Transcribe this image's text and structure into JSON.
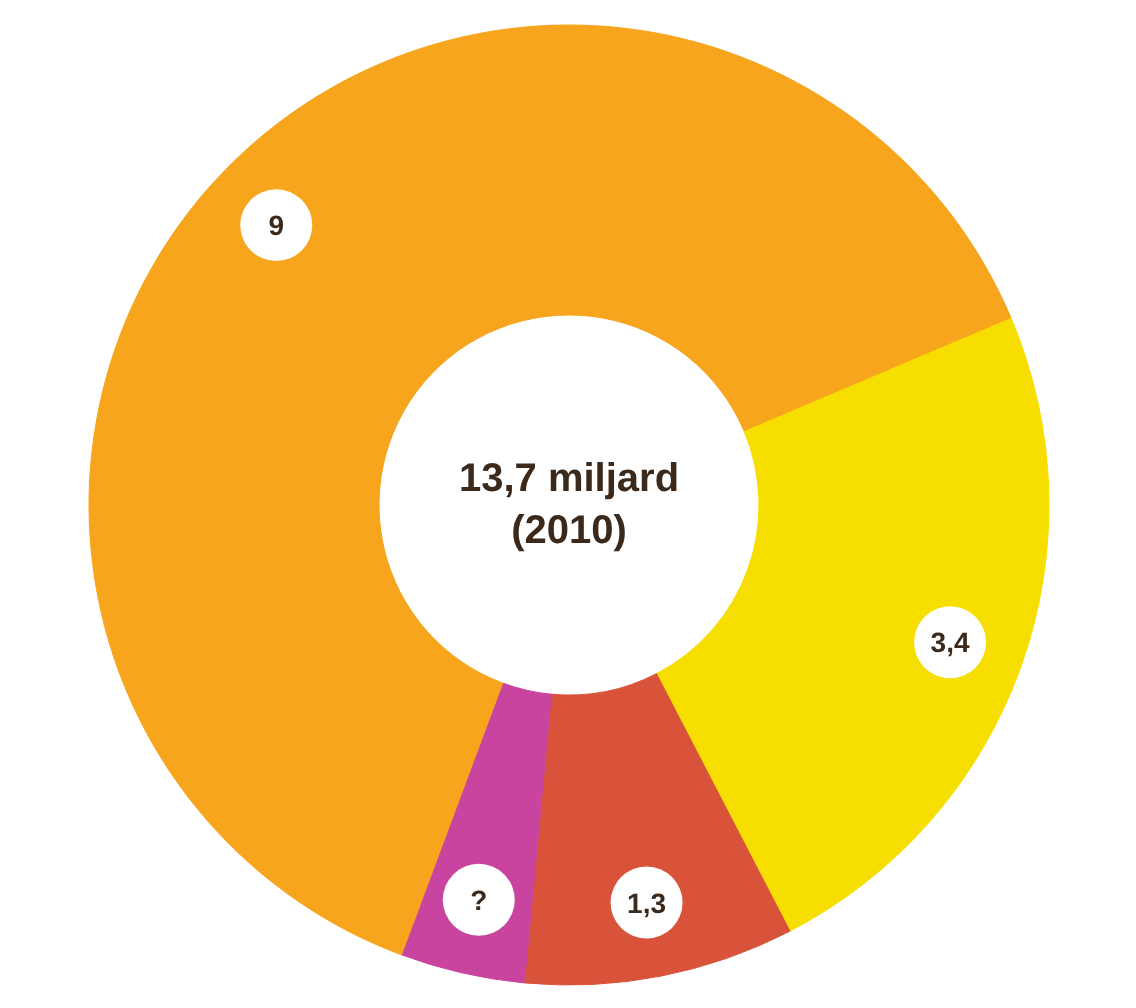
{
  "chart_data": {
    "type": "donut",
    "categories": [
      null,
      null,
      null,
      null
    ],
    "values": [
      3.4,
      1.3,
      0.6,
      9
    ],
    "value_labels": [
      "3,4",
      "1,3",
      "?",
      "9"
    ],
    "colors": [
      "#f6df00",
      "#d9533b",
      "#c8449e",
      "#f7a51c"
    ],
    "annotations": [
      "13,7 miljard\n(2010)"
    ]
  }
}
